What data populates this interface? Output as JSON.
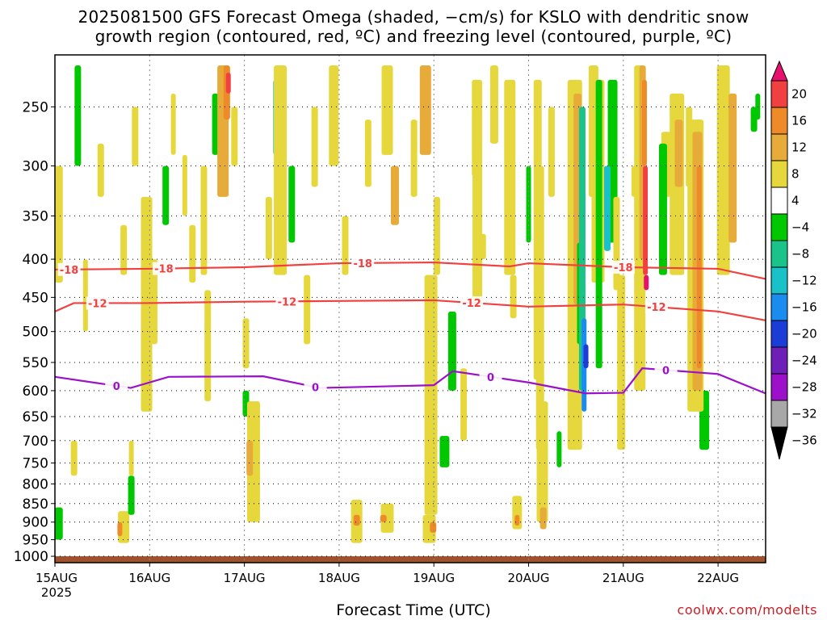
{
  "title_line1": "2025081500 GFS Forecast Omega (shaded, −cm/s) for KSLO with dendritic snow",
  "title_line2": "growth region (contoured, red, ºC) and freezing level (contoured, purple, ºC)",
  "xlabel": "Forecast Time (UTC)",
  "watermark": "coolwx.com/modelts",
  "chart_data": {
    "type": "heatmap",
    "title": "2025081500 GFS Forecast Omega (shaded, −cm/s) for KSLO with dendritic snow growth region (contoured, red, ºC) and freezing level (contoured, purple, ºC)",
    "xlabel": "Forecast Time (UTC)",
    "ylabel": "",
    "y_scale": "pressure (log)",
    "y_ticks": [
      250,
      300,
      350,
      400,
      450,
      500,
      550,
      600,
      650,
      700,
      750,
      800,
      850,
      900,
      950,
      1000
    ],
    "x_ticks": [
      "15AUG",
      "16AUG",
      "17AUG",
      "18AUG",
      "19AUG",
      "20AUG",
      "21AUG",
      "22AUG"
    ],
    "x_tick_sublabel": "2025",
    "x_range_days": [
      "15AUG",
      "22AUG+0.5"
    ],
    "grid": true,
    "colorbar": {
      "labels": [
        "20",
        "16",
        "12",
        "8",
        "4",
        "−4",
        "−8",
        "−12",
        "−16",
        "−20",
        "−24",
        "−28",
        "−32",
        "−36"
      ],
      "colors": [
        "#e8106e",
        "#f04040",
        "#ef8a28",
        "#e7ab3a",
        "#e6d83c",
        "#ffffff",
        "#00c800",
        "#19c38a",
        "#19c2c8",
        "#1a8cf0",
        "#1c3cd8",
        "#6e1fb8",
        "#9b10c8",
        "#a8a8a8",
        "#000000"
      ]
    },
    "contours": [
      {
        "label": "-18",
        "color": "#f04040",
        "values_day_hPa": [
          [
            0,
            413
          ],
          [
            1,
            412
          ],
          [
            2,
            410
          ],
          [
            3,
            405
          ],
          [
            4,
            404
          ],
          [
            4.8,
            409
          ],
          [
            5,
            405
          ],
          [
            6,
            410
          ],
          [
            7,
            412
          ],
          [
            7.5,
            425
          ]
        ],
        "labels_at_days": [
          0.15,
          1.15,
          3.25,
          6.0
        ]
      },
      {
        "label": "-12",
        "color": "#f04040",
        "values_day_hPa": [
          [
            0,
            470
          ],
          [
            0.2,
            458
          ],
          [
            1,
            458
          ],
          [
            2,
            456
          ],
          [
            3,
            455
          ],
          [
            4,
            454
          ],
          [
            5,
            463
          ],
          [
            6,
            460
          ],
          [
            7,
            470
          ],
          [
            7.5,
            483
          ]
        ],
        "labels_at_days": [
          0.45,
          2.45,
          4.4,
          6.35
        ]
      },
      {
        "label": "0",
        "color": "#9b10c8",
        "values_day_hPa": [
          [
            0,
            575
          ],
          [
            0.8,
            595
          ],
          [
            1.2,
            575
          ],
          [
            2.2,
            574
          ],
          [
            2.8,
            595
          ],
          [
            4,
            590
          ],
          [
            4.2,
            565
          ],
          [
            5,
            585
          ],
          [
            5.6,
            605
          ],
          [
            6,
            604
          ],
          [
            6.2,
            560
          ],
          [
            7,
            570
          ],
          [
            7.5,
            605
          ]
        ],
        "labels_at_days": [
          0.65,
          2.75,
          4.6,
          6.45
        ]
      }
    ],
    "ground_level_hPa": 1000
  },
  "axes": {
    "y_tick_labels": [
      "250",
      "300",
      "350",
      "400",
      "450",
      "500",
      "550",
      "600",
      "650",
      "700",
      "750",
      "800",
      "850",
      "900",
      "950",
      "1000"
    ],
    "x_tick_labels": [
      "15AUG",
      "16AUG",
      "17AUG",
      "18AUG",
      "19AUG",
      "20AUG",
      "21AUG",
      "22AUG"
    ],
    "x_year": "2025"
  }
}
